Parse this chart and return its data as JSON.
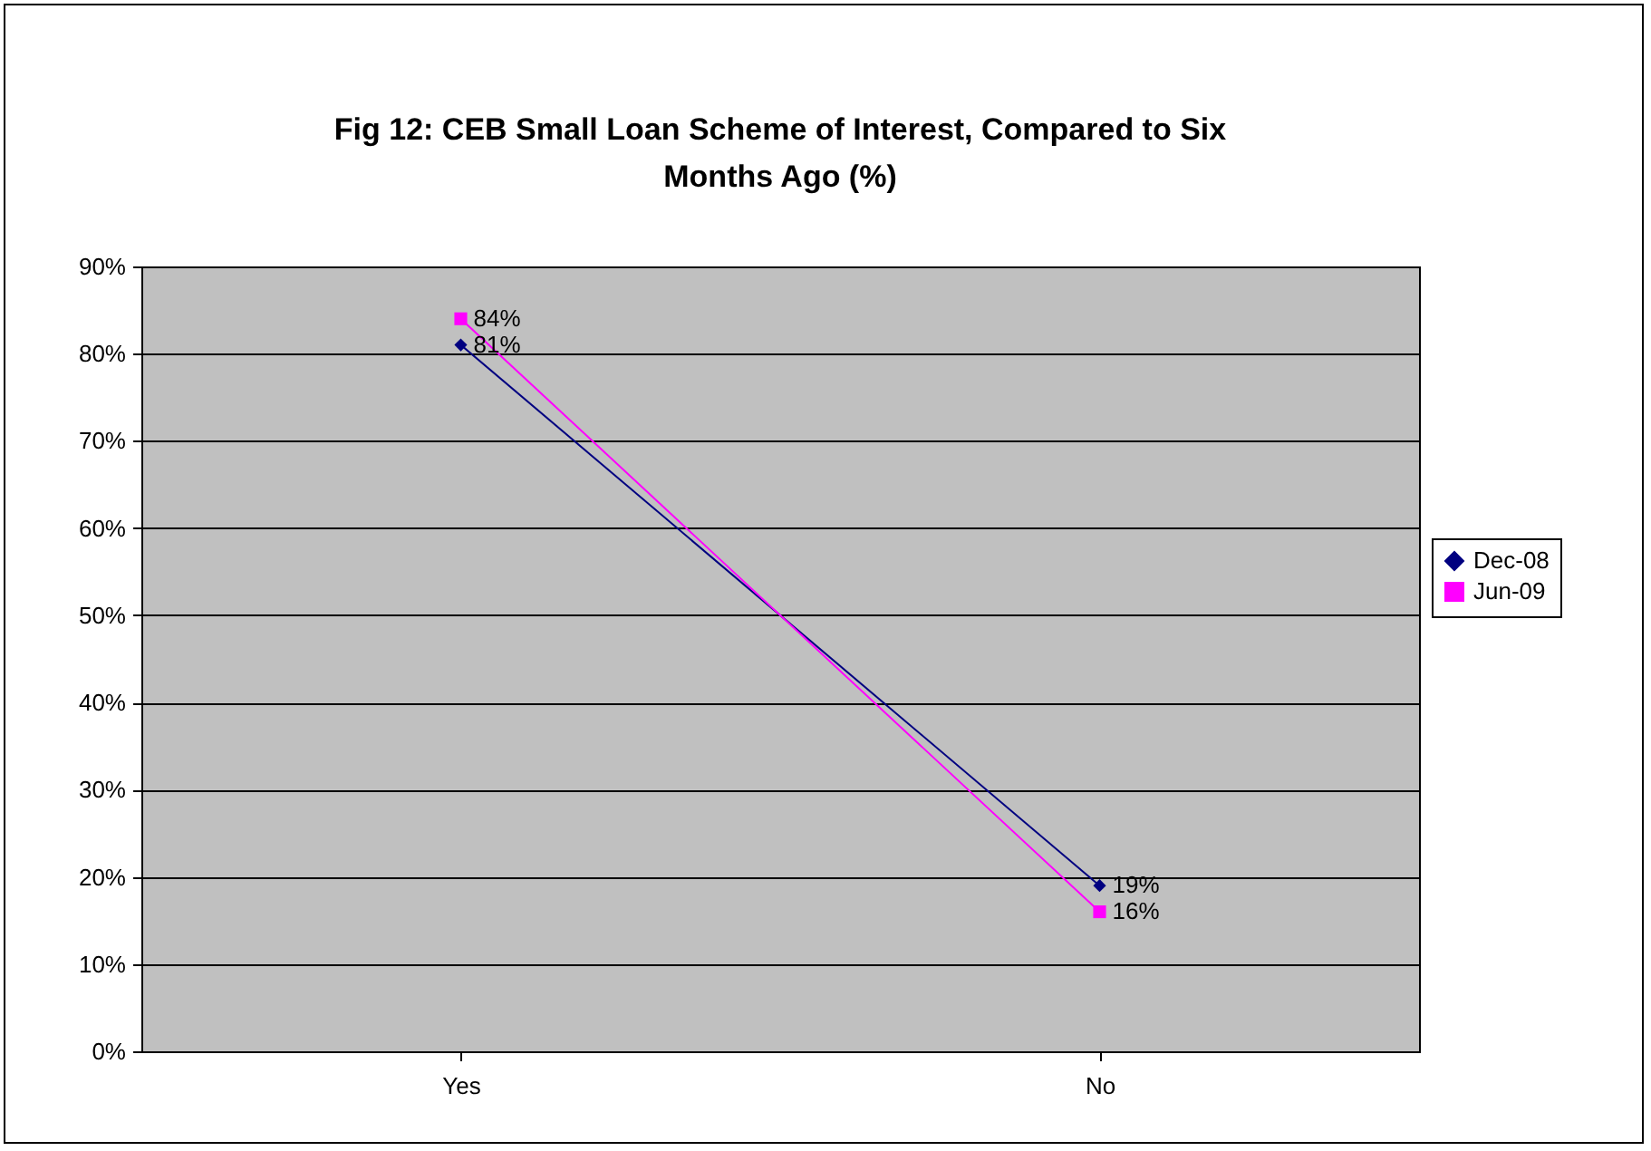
{
  "chart_data": {
    "type": "line",
    "title": "Fig 12: CEB Small Loan Scheme of Interest, Compared to Six Months Ago (%)",
    "categories": [
      "Yes",
      "No"
    ],
    "series": [
      {
        "name": "Dec-08",
        "color": "#000080",
        "marker": "diamond",
        "values": [
          81,
          19
        ],
        "value_labels": [
          "81%",
          "19%"
        ]
      },
      {
        "name": "Jun-09",
        "color": "#ff00ff",
        "marker": "square",
        "values": [
          84,
          16
        ],
        "value_labels": [
          "84%",
          "16%"
        ]
      }
    ],
    "ylim": [
      0,
      90
    ],
    "yticks": [
      {
        "value": 0,
        "label": "0%"
      },
      {
        "value": 10,
        "label": "10%"
      },
      {
        "value": 20,
        "label": "20%"
      },
      {
        "value": 30,
        "label": "30%"
      },
      {
        "value": 40,
        "label": "40%"
      },
      {
        "value": 50,
        "label": "50%"
      },
      {
        "value": 60,
        "label": "60%"
      },
      {
        "value": 70,
        "label": "70%"
      },
      {
        "value": 80,
        "label": "80%"
      },
      {
        "value": 90,
        "label": "90%"
      }
    ],
    "grid": "y",
    "legend": "right"
  }
}
